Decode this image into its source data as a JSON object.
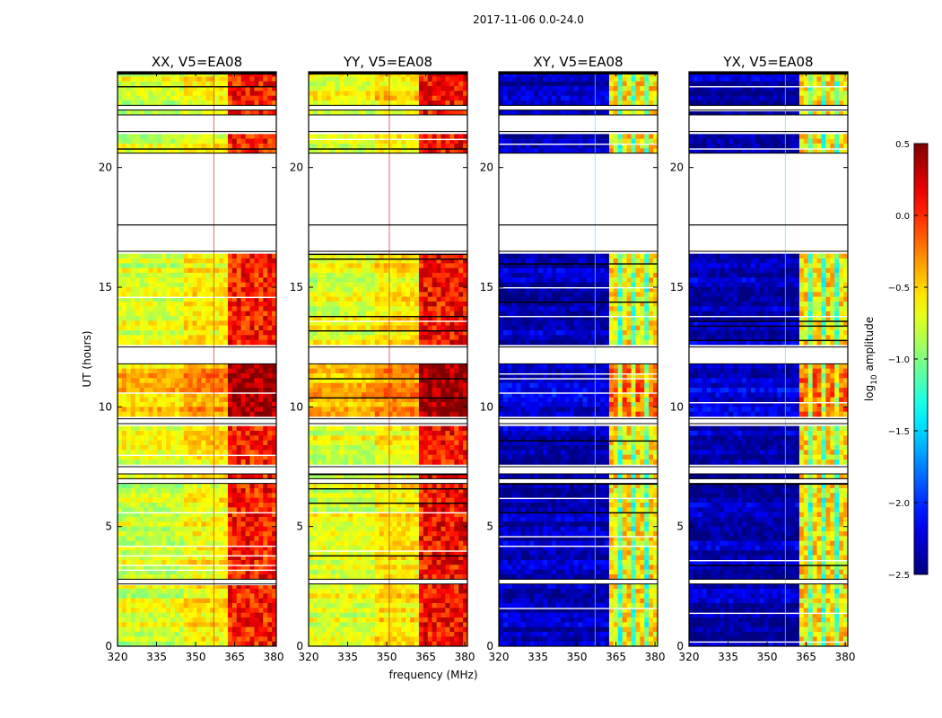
{
  "chart_data": {
    "type": "heatmap",
    "suptitle": "2017-11-06 0.0-24.0",
    "xlabel": "frequency (MHz)",
    "ylabel": "UT (hours)",
    "x_range": [
      320,
      381
    ],
    "y_range": [
      0,
      24
    ],
    "x_ticks": [
      "320",
      "335",
      "350",
      "365",
      "380"
    ],
    "y_ticks": [
      "0",
      "5",
      "10",
      "15",
      "20"
    ],
    "colorbar": {
      "label_main": "log",
      "label_sub": "10",
      "label_rest": " amplitude",
      "range": [
        -2.5,
        0.5
      ],
      "ticks": [
        "0.5",
        "0.0",
        "−0.5",
        "−1.0",
        "−1.5",
        "−2.0",
        "−2.5"
      ],
      "colormap": "jet"
    },
    "panels": [
      {
        "title": "XX, V5=EA08",
        "kind": "auto",
        "base_level": -0.75,
        "band_level": 0.05,
        "band_mhz": [
          362,
          381
        ],
        "flag_mhz": 357
      },
      {
        "title": "YY, V5=EA08",
        "kind": "auto",
        "base_level": -0.7,
        "band_level": 0.1,
        "band_mhz": [
          362,
          381
        ],
        "flag_mhz": 351
      },
      {
        "title": "XY, V5=EA08",
        "kind": "cross",
        "base_level": -2.35,
        "band_level": -0.55,
        "band_mhz": [
          362,
          381
        ],
        "flag_mhz": 357
      },
      {
        "title": "YX, V5=EA08",
        "kind": "cross",
        "base_level": -2.35,
        "band_level": -0.55,
        "band_mhz": [
          362,
          381
        ],
        "flag_mhz": 357
      }
    ],
    "data_gaps_hours": [
      [
        2.6,
        2.8
      ],
      [
        6.8,
        7.0
      ],
      [
        7.2,
        7.5
      ],
      [
        9.3,
        9.5
      ],
      [
        11.8,
        12.5
      ],
      [
        16.5,
        17.6
      ],
      [
        17.6,
        20.6
      ],
      [
        21.5,
        22.2
      ],
      [
        22.4,
        22.6
      ],
      [
        24.0,
        24.0
      ]
    ]
  }
}
